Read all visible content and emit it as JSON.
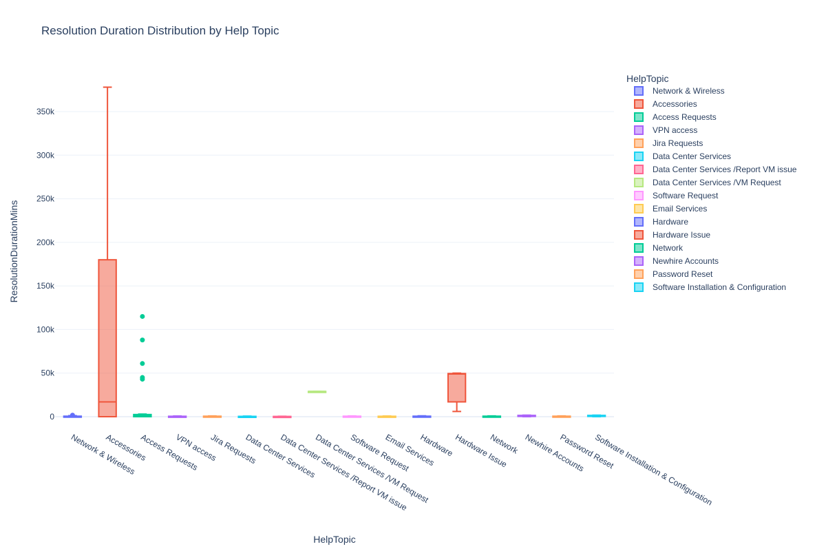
{
  "chart_data": {
    "type": "box",
    "title": "Resolution Duration Distribution by Help Topic",
    "xlabel": "HelpTopic",
    "ylabel": "ResolutionDurationMins",
    "legend_title": "HelpTopic",
    "legend_position": "right",
    "grid": true,
    "ylim": [
      -8000,
      385000
    ],
    "yticks": [
      0,
      50000,
      100000,
      150000,
      200000,
      250000,
      300000,
      350000
    ],
    "ytick_labels": [
      "0",
      "50k",
      "100k",
      "150k",
      "200k",
      "250k",
      "300k",
      "350k"
    ],
    "series": [
      {
        "name": "Network & Wireless",
        "color": "#636efa",
        "min": 0,
        "q1": 0,
        "median": 300,
        "q3": 600,
        "max": 1200,
        "outliers": [
          1800
        ]
      },
      {
        "name": "Accessories",
        "color": "#ef553b",
        "min": 0,
        "q1": 0,
        "median": 17000,
        "q3": 180000,
        "max": 378000,
        "outliers": []
      },
      {
        "name": "Access Requests",
        "color": "#00cc96",
        "min": 0,
        "q1": 0,
        "median": 1000,
        "q3": 2500,
        "max": 3000,
        "outliers": [
          43000,
          45000,
          61000,
          88000,
          115000
        ]
      },
      {
        "name": "VPN access",
        "color": "#ab63fa",
        "min": 0,
        "q1": 0,
        "median": 200,
        "q3": 500,
        "max": 800,
        "outliers": []
      },
      {
        "name": "Jira Requests",
        "color": "#ffa15a",
        "min": 0,
        "q1": 0,
        "median": 300,
        "q3": 600,
        "max": 900,
        "outliers": []
      },
      {
        "name": "Data Center Services",
        "color": "#19d3f3",
        "min": 0,
        "q1": 0,
        "median": 200,
        "q3": 400,
        "max": 700,
        "outliers": []
      },
      {
        "name": "Data Center Services /Report VM issue",
        "color": "#ff6692",
        "min": 0,
        "q1": 0,
        "median": 100,
        "q3": 300,
        "max": 500,
        "outliers": []
      },
      {
        "name": "Data Center Services /VM Request",
        "color": "#b6e880",
        "min": 28500,
        "q1": 28500,
        "median": 29000,
        "q3": 29000,
        "max": 29000,
        "outliers": []
      },
      {
        "name": "Software Request",
        "color": "#ff97ff",
        "min": 0,
        "q1": 0,
        "median": 300,
        "q3": 600,
        "max": 900,
        "outliers": []
      },
      {
        "name": "Email Services",
        "color": "#fecb52",
        "min": 0,
        "q1": 0,
        "median": 200,
        "q3": 500,
        "max": 800,
        "outliers": []
      },
      {
        "name": "Hardware",
        "color": "#636efa",
        "min": 0,
        "q1": 0,
        "median": 200,
        "q3": 600,
        "max": 1000,
        "outliers": []
      },
      {
        "name": "Hardware Issue",
        "color": "#ef553b",
        "min": 6000,
        "q1": 17000,
        "median": 49000,
        "q3": 49500,
        "max": 50000,
        "outliers": []
      },
      {
        "name": "Network",
        "color": "#00cc96",
        "min": 0,
        "q1": 0,
        "median": 300,
        "q3": 600,
        "max": 900,
        "outliers": []
      },
      {
        "name": "Newhire Accounts",
        "color": "#ab63fa",
        "min": 0,
        "q1": 600,
        "median": 1000,
        "q3": 1500,
        "max": 1800,
        "outliers": []
      },
      {
        "name": "Password Reset",
        "color": "#ffa15a",
        "min": 0,
        "q1": 0,
        "median": 300,
        "q3": 600,
        "max": 900,
        "outliers": []
      },
      {
        "name": "Software Installation & Configuration",
        "color": "#19d3f3",
        "min": 0,
        "q1": 500,
        "median": 1000,
        "q3": 1500,
        "max": 1800,
        "outliers": []
      }
    ]
  }
}
